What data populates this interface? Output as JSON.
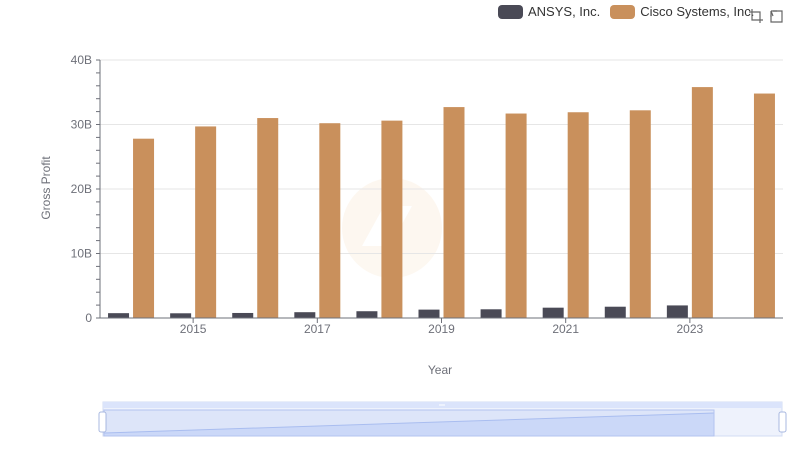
{
  "chart_data": {
    "type": "bar",
    "title": "",
    "xlabel": "Year",
    "ylabel": "Gross Profit",
    "ylim": [
      0,
      40000000000
    ],
    "y_ticks": [
      "0",
      "10B",
      "20B",
      "30B",
      "40B"
    ],
    "x_tick_labels": [
      "2015",
      "2017",
      "2019",
      "2021",
      "2023"
    ],
    "categories": [
      "2014",
      "2015",
      "2016",
      "2017",
      "2018",
      "2019",
      "2020",
      "2021",
      "2022",
      "2023",
      "2024"
    ],
    "series": [
      {
        "name": "ANSYS, Inc.",
        "color": "#4a4a56",
        "values": [
          750000000,
          730000000,
          780000000,
          900000000,
          1050000000,
          1300000000,
          1350000000,
          1600000000,
          1750000000,
          1950000000,
          null
        ]
      },
      {
        "name": "Cisco Systems, Inc.",
        "color": "#c9905c",
        "values": [
          27800000000,
          29700000000,
          31000000000,
          30200000000,
          30600000000,
          32700000000,
          31700000000,
          31900000000,
          32200000000,
          35800000000,
          34800000000
        ]
      }
    ],
    "grid": true,
    "legend_position": "top-right"
  },
  "legend": {
    "items": [
      {
        "label": "ANSYS, Inc.",
        "color": "#4a4a56"
      },
      {
        "label": "Cisco Systems, Inc.",
        "color": "#c9905c"
      }
    ]
  },
  "toolbar": {
    "zoom_icon": "zoom-icon",
    "restore_icon": "restore-icon"
  },
  "colors": {
    "grid": "#e6e6e6",
    "axis": "#6e7079",
    "slider_fill": "#dbe4fb",
    "slider_border": "#b3c3ef"
  }
}
